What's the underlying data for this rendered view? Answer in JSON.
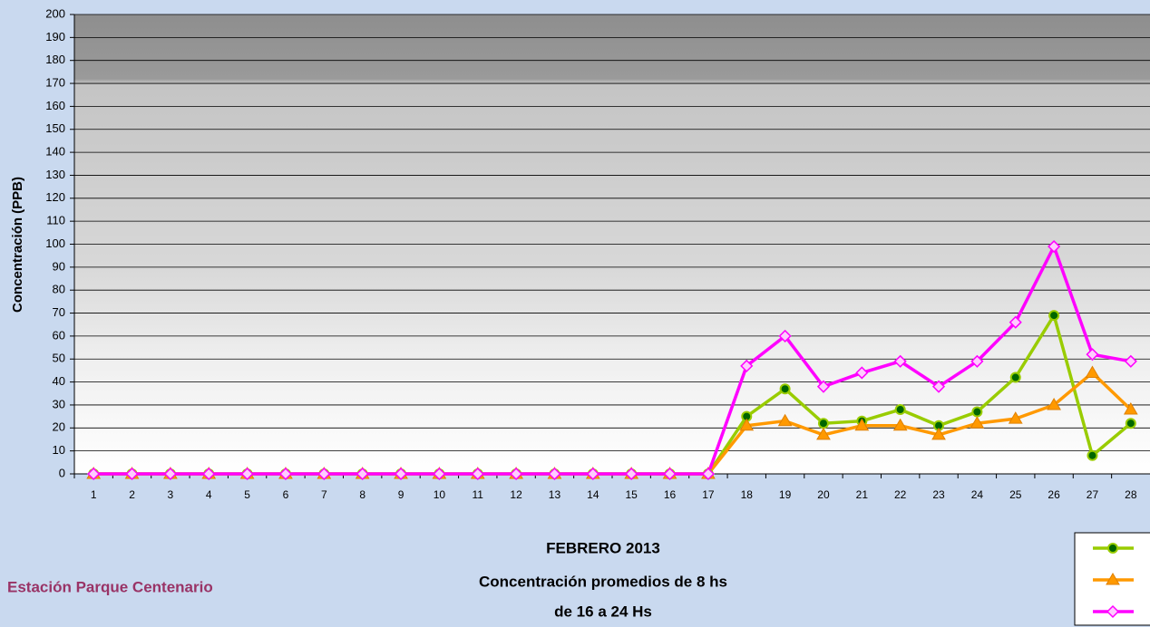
{
  "chart_data": {
    "type": "line",
    "y_label": "Concentración  (PPB)",
    "title_lines": [
      "FEBRERO 2013",
      "Concentración promedios de 8 hs",
      "de 16 a 24 Hs"
    ],
    "station": "Estación Parque Centenario",
    "categories": [
      "1",
      "2",
      "3",
      "4",
      "5",
      "6",
      "7",
      "8",
      "9",
      "10",
      "11",
      "12",
      "13",
      "14",
      "15",
      "16",
      "17",
      "18",
      "19",
      "20",
      "21",
      "22",
      "23",
      "24",
      "25",
      "26",
      "27",
      "28"
    ],
    "series": [
      {
        "color": "#99cc00",
        "marker": "circle",
        "values": [
          0,
          0,
          0,
          0,
          0,
          0,
          0,
          0,
          0,
          0,
          0,
          0,
          0,
          0,
          0,
          0,
          0,
          25,
          37,
          22,
          23,
          28,
          21,
          27,
          42,
          69,
          8,
          22
        ]
      },
      {
        "color": "#ff9900",
        "marker": "triangle",
        "values": [
          0,
          0,
          0,
          0,
          0,
          0,
          0,
          0,
          0,
          0,
          0,
          0,
          0,
          0,
          0,
          0,
          0,
          21,
          23,
          17,
          21,
          21,
          17,
          22,
          24,
          30,
          44,
          28
        ]
      },
      {
        "color": "#ff00ff",
        "marker": "diamond",
        "values": [
          0,
          0,
          0,
          0,
          0,
          0,
          0,
          0,
          0,
          0,
          0,
          0,
          0,
          0,
          0,
          0,
          0,
          47,
          60,
          38,
          44,
          49,
          38,
          49,
          66,
          99,
          52,
          49
        ]
      }
    ],
    "ylim": [
      0,
      200
    ],
    "yticks": [
      0,
      10,
      20,
      30,
      40,
      50,
      60,
      70,
      80,
      90,
      100,
      110,
      120,
      130,
      140,
      150,
      160,
      170,
      180,
      190,
      200
    ],
    "grid": true
  }
}
